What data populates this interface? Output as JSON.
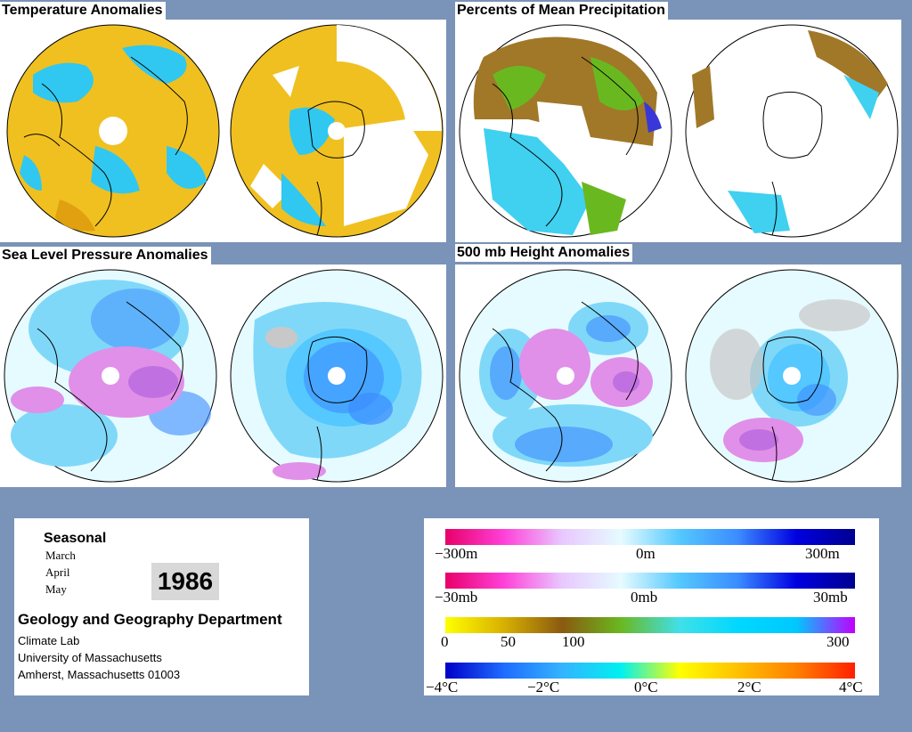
{
  "panels": [
    {
      "title": "Temperature Anomalies",
      "kind": "temp"
    },
    {
      "title": "Percents of Mean Precipitation",
      "kind": "precip"
    },
    {
      "title": "Sea Level Pressure Anomalies",
      "kind": "slp"
    },
    {
      "title": "500 mb Height Anomalies",
      "kind": "hgt"
    }
  ],
  "info": {
    "seasonal": "Seasonal",
    "months": [
      "March",
      "April",
      "May"
    ],
    "year": "1986",
    "department": "Geology and Geography Department",
    "address": [
      "Climate Lab",
      "University of Massachusetts",
      "Amherst, Massachusetts 01003"
    ]
  },
  "legend": {
    "height": {
      "labels": [
        "−300m",
        "0m",
        "300m"
      ],
      "stops": [
        "#e8006a",
        "#ff40d8",
        "#e8c8ff",
        "#e6fbff",
        "#54c8ff",
        "#3c8cff",
        "#0000e0",
        "#000090"
      ]
    },
    "pressure": {
      "labels": [
        "−30mb",
        "0mb",
        "30mb"
      ],
      "stops": [
        "#e8006a",
        "#ff40d8",
        "#e8c8ff",
        "#e6fbff",
        "#54c8ff",
        "#3c8cff",
        "#0000e0",
        "#000090"
      ]
    },
    "precip": {
      "labels": [
        "0",
        "50",
        "100",
        "300"
      ],
      "stops": [
        "#ffff00",
        "#d8b000",
        "#8a5a10",
        "#6ab820",
        "#40e0e8",
        "#00d8ff",
        "#00c8ff",
        "#c000ff"
      ]
    },
    "temperature": {
      "labels": [
        "−4°C",
        "−2°C",
        "0°C",
        "2°C",
        "4°C"
      ],
      "stops": [
        "#0000c8",
        "#1e6cff",
        "#34b4ff",
        "#00f0f0",
        "#ffff00",
        "#ffc000",
        "#ff8000",
        "#ff2000"
      ]
    }
  },
  "colors": {
    "background": "#7a93b8",
    "temp_warm": "#f0c020",
    "temp_cold": "#30c8f0",
    "precip_dry": "#a07828",
    "precip_wet": "#40d0f0",
    "anom_low": "#80d8f8",
    "anom_high": "#e090e8"
  }
}
